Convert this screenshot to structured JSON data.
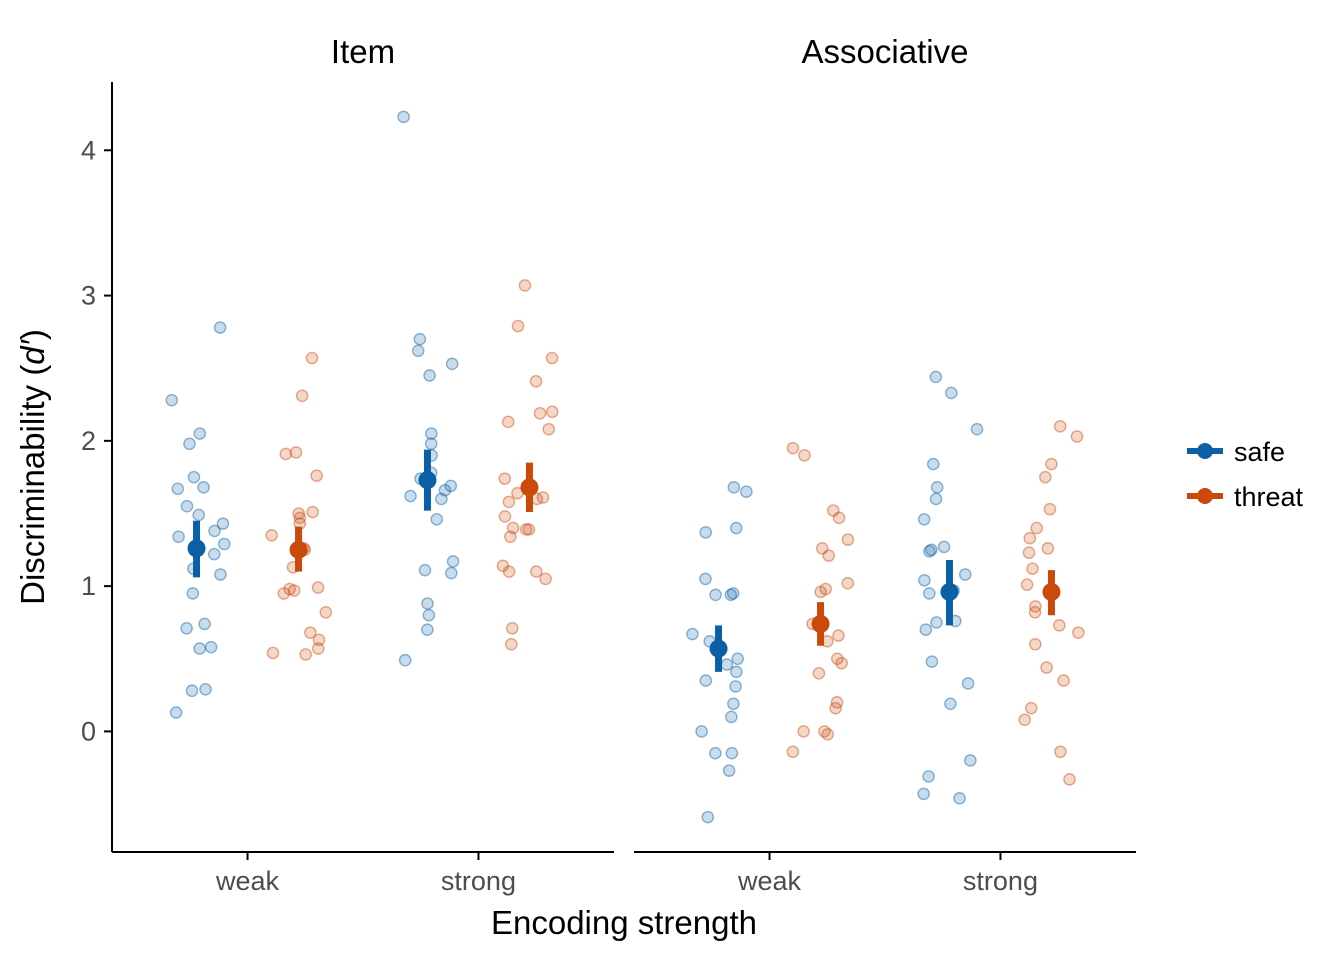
{
  "chart_data": {
    "type": "scatter",
    "xlabel": "Encoding strength",
    "ylabel_parts": [
      "Discriminability (",
      "d′",
      ")"
    ],
    "ylim": [
      -0.83,
      4.47
    ],
    "yticks": [
      0,
      1,
      2,
      3,
      4
    ],
    "ytick_labels": [
      "0",
      "1",
      "2",
      "3",
      "4"
    ],
    "categories": [
      "weak",
      "strong"
    ],
    "grid": false,
    "legend_position": "right",
    "colors": {
      "safe": "#0b5fa5",
      "threat": "#c94a0a"
    },
    "legend": [
      {
        "key": "safe",
        "label": "safe"
      },
      {
        "key": "threat",
        "label": "threat"
      }
    ],
    "facets": [
      {
        "title": "Item",
        "groups": [
          {
            "category": "weak",
            "series": "safe",
            "mean": 1.26,
            "ci": [
              1.06,
              1.45
            ],
            "points": [
              2.78,
              2.28,
              2.05,
              1.98,
              1.75,
              1.68,
              1.67,
              1.55,
              1.49,
              1.43,
              1.38,
              1.34,
              1.29,
              1.22,
              1.12,
              1.08,
              0.95,
              0.74,
              0.71,
              0.58,
              0.57,
              0.29,
              0.28,
              0.13
            ]
          },
          {
            "category": "weak",
            "series": "threat",
            "mean": 1.25,
            "ci": [
              1.1,
              1.41
            ],
            "points": [
              2.57,
              2.31,
              1.92,
              1.91,
              1.76,
              1.51,
              1.5,
              1.47,
              1.43,
              1.35,
              1.26,
              1.25,
              1.13,
              0.99,
              0.98,
              0.97,
              0.95,
              0.82,
              0.68,
              0.63,
              0.57,
              0.54,
              0.53
            ]
          },
          {
            "category": "strong",
            "series": "safe",
            "mean": 1.73,
            "ci": [
              1.52,
              1.94
            ],
            "points": [
              4.23,
              2.7,
              2.62,
              2.53,
              2.45,
              2.05,
              1.98,
              1.9,
              1.78,
              1.74,
              1.69,
              1.66,
              1.62,
              1.6,
              1.46,
              1.17,
              1.11,
              1.09,
              0.88,
              0.8,
              0.7,
              0.49
            ]
          },
          {
            "category": "strong",
            "series": "threat",
            "mean": 1.68,
            "ci": [
              1.51,
              1.85
            ],
            "points": [
              3.07,
              2.79,
              2.57,
              2.41,
              2.2,
              2.19,
              2.13,
              2.08,
              1.74,
              1.64,
              1.61,
              1.6,
              1.58,
              1.48,
              1.4,
              1.39,
              1.39,
              1.34,
              1.14,
              1.1,
              1.1,
              1.05,
              0.71,
              0.6
            ]
          }
        ]
      },
      {
        "title": "Associative",
        "groups": [
          {
            "category": "weak",
            "series": "safe",
            "mean": 0.57,
            "ci": [
              0.41,
              0.73
            ],
            "points": [
              1.68,
              1.65,
              1.4,
              1.37,
              1.05,
              0.95,
              0.94,
              0.94,
              0.67,
              0.62,
              0.5,
              0.46,
              0.41,
              0.35,
              0.31,
              0.19,
              0.1,
              0.0,
              -0.15,
              -0.15,
              -0.27,
              -0.59
            ]
          },
          {
            "category": "weak",
            "series": "threat",
            "mean": 0.74,
            "ci": [
              0.59,
              0.89
            ],
            "points": [
              1.95,
              1.9,
              1.52,
              1.47,
              1.32,
              1.26,
              1.21,
              1.02,
              0.98,
              0.96,
              0.74,
              0.66,
              0.62,
              0.5,
              0.47,
              0.4,
              0.2,
              0.16,
              0.0,
              0.0,
              -0.02,
              -0.14
            ]
          },
          {
            "category": "strong",
            "series": "safe",
            "mean": 0.96,
            "ci": [
              0.73,
              1.18
            ],
            "points": [
              2.44,
              2.33,
              2.08,
              1.84,
              1.68,
              1.6,
              1.46,
              1.27,
              1.25,
              1.24,
              1.08,
              1.04,
              0.97,
              0.95,
              0.76,
              0.75,
              0.7,
              0.48,
              0.33,
              0.19,
              -0.2,
              -0.31,
              -0.43,
              -0.46
            ]
          },
          {
            "category": "strong",
            "series": "threat",
            "mean": 0.96,
            "ci": [
              0.8,
              1.11
            ],
            "points": [
              2.1,
              2.03,
              1.84,
              1.75,
              1.53,
              1.4,
              1.33,
              1.26,
              1.23,
              1.12,
              1.01,
              0.86,
              0.82,
              0.73,
              0.68,
              0.6,
              0.44,
              0.35,
              0.16,
              0.08,
              -0.14,
              -0.33
            ]
          }
        ]
      }
    ]
  }
}
